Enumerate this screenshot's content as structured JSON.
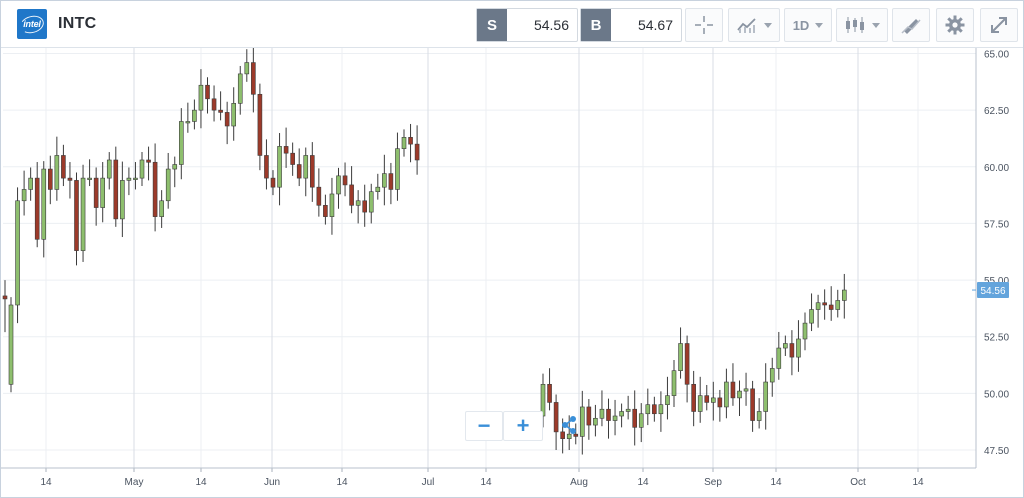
{
  "header": {
    "logo_text": "intel",
    "ticker": "INTC",
    "sell_tag": "S",
    "sell_price": "54.56",
    "buy_tag": "B",
    "buy_price": "54.67",
    "timeframe": "1D"
  },
  "tools": {
    "crosshair": "crosshair-icon",
    "compare": "line-chart-icon",
    "chart_type": "candlestick-icon",
    "draw": "draw-icon",
    "settings": "gear-icon",
    "fullscreen": "expand-icon"
  },
  "zoom": {
    "minus_label": "−",
    "plus_label": "+"
  },
  "colors": {
    "up": "#8ebf6e",
    "down": "#9c3a2a",
    "last_price_bg": "#63a4dc",
    "grid": "#eceff3"
  },
  "chart_data": {
    "type": "candlestick",
    "symbol": "INTC",
    "last_price": 54.56,
    "ylim": [
      47,
      65
    ],
    "y_ticks": [
      "65.00",
      "62.50",
      "60.00",
      "57.50",
      "55.00",
      "52.50",
      "50.00",
      "47.50"
    ],
    "x_ticks": [
      "14",
      "May",
      "14",
      "Jun",
      "14",
      "Jul",
      "14",
      "Aug",
      "14",
      "Sep",
      "14",
      "Oct",
      "14"
    ],
    "segments": [
      {
        "closes": [
          53.9,
          58.5,
          59.0,
          59.5,
          56.8,
          59.9,
          59.0,
          60.5,
          59.5,
          59.4,
          56.3,
          59.5,
          59.5,
          58.2,
          59.5,
          60.3,
          57.7,
          59.4,
          59.5,
          59.5,
          60.3,
          60.2,
          57.8,
          58.5,
          59.9,
          60.1,
          62.0,
          62.0,
          62.5,
          63.6,
          63.0,
          62.5,
          62.4,
          61.8,
          62.8,
          64.1,
          64.6,
          63.2,
          60.5,
          59.5,
          59.1,
          60.9,
          60.6,
          60.1,
          59.5,
          60.5,
          59.1,
          58.3,
          57.8,
          58.8,
          59.6,
          59.2,
          58.3,
          58.5,
          58.0,
          58.9,
          59.1,
          59.7,
          59.0,
          60.8,
          61.3,
          61.0,
          60.3
        ]
      },
      {
        "closes": [
          50.4,
          49.6,
          48.3,
          48.0,
          48.2,
          48.1,
          49.4,
          48.6,
          48.9,
          49.3,
          48.8,
          49.0,
          49.2,
          49.3,
          48.5,
          49.1,
          49.5,
          49.1,
          49.5,
          49.9,
          51.0,
          52.2,
          50.4,
          49.2,
          49.9,
          49.6,
          49.8,
          49.4,
          50.5,
          49.8,
          50.1,
          50.2,
          48.8,
          49.2,
          50.5,
          51.1,
          52.0,
          52.2,
          51.6,
          52.4,
          53.1,
          53.7,
          54.0,
          53.9,
          53.7,
          54.1,
          54.56
        ]
      }
    ]
  }
}
